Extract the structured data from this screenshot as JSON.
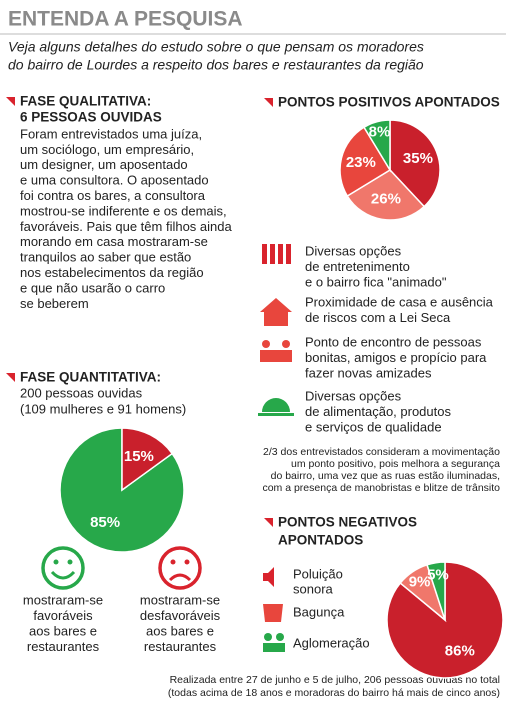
{
  "header": {
    "title": "ENTENDA A PESQUISA",
    "subtitle": [
      "Veja alguns detalhes do estudo sobre o que pensam os moradores",
      "do bairro de Lourdes a respeito dos bares e restaurantes da região"
    ]
  },
  "qualitative": {
    "heading": "FASE QUALITATIVA:",
    "subheading": "6 PESSOAS OUVIDAS",
    "body": [
      "Foram entrevistados uma juíza,",
      "um sociólogo, um empresário,",
      "um designer, um aposentado",
      "e uma consultora. O aposentado",
      "foi contra os bares, a consultora",
      "mostrou-se indiferente e os demais,",
      "favoráveis. Pais que têm filhos ainda",
      "morando em casa mostraram-se",
      "tranquilos ao saber que estão",
      "nos estabelecimentos da região",
      "e que não usarão o carro",
      "se beberem"
    ]
  },
  "quantitative": {
    "lines": [
      "200 pessoas ouvidas",
      "(109 mulheres e 91 homens)"
    ],
    "favorable": [
      "mostraram-se",
      "favoráveis",
      "aos bares e",
      "restaurantes"
    ],
    "unfavorable": [
      "mostraram-se",
      "desfavoráveis",
      "aos  bares e",
      "restaurantes"
    ]
  },
  "positives": {
    "items": [
      [
        "Diversas opções",
        "de entretenimento",
        "e o bairro fica \"animado\""
      ],
      [
        "Proximidade de casa e ausência",
        "de riscos com a Lei Seca"
      ],
      [
        "Ponto de encontro de pessoas",
        "bonitas, amigos e propício para",
        "fazer novas amizades"
      ],
      [
        "Diversas opções",
        "de alimentação, produtos",
        "e serviços de qualidade"
      ]
    ],
    "note": [
      "2/3 dos entrevistados consideram a movimentação",
      "um ponto positivo, pois melhora a segurança",
      "do bairro, uma vez que as ruas estão iluminadas,",
      "com a presença de manobristas e blitze de trânsito"
    ]
  },
  "negatives": {
    "items": [
      [
        "Poluição",
        "sonora"
      ],
      [
        "Bagunça"
      ],
      [
        "Aglomeração"
      ]
    ]
  },
  "footer": [
    "Realizada entre 27 de junho e 5 de julho, 206 pessoas ouvidas no total",
    "(todas acima de 18 anos e moradoras do bairro há mais de cinco anos)"
  ],
  "chart_data": [
    {
      "type": "pie",
      "title": [
        "PONTOS POSITIVOS APONTADOS"
      ],
      "values": [
        35,
        26,
        23,
        8
      ],
      "value_labels": [
        "35%",
        "26%",
        "23%",
        "8%"
      ],
      "colors": [
        "#c9202c",
        "#f0776b",
        "#e8463d",
        "#27a84a"
      ]
    },
    {
      "type": "pie",
      "title": [
        "FASE QUANTITATIVA:"
      ],
      "values": [
        85,
        15
      ],
      "value_labels": [
        "85%",
        "15%"
      ],
      "colors": [
        "#27a84a",
        "#c9202c"
      ]
    },
    {
      "type": "pie",
      "title": [
        "PONTOS NEGATIVOS",
        "APONTADOS"
      ],
      "values": [
        86,
        9,
        5
      ],
      "value_labels": [
        "86%",
        "9%",
        "5%"
      ],
      "colors": [
        "#c9202c",
        "#f0776b",
        "#27a84a"
      ]
    }
  ]
}
